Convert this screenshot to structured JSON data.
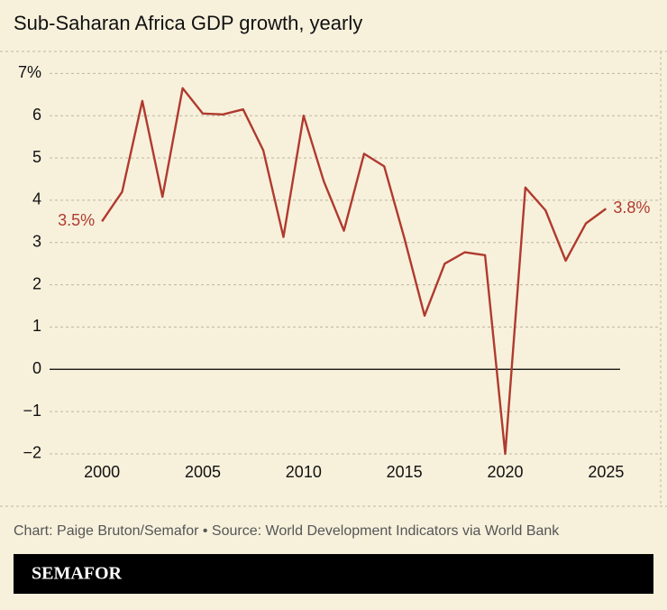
{
  "chart_data": {
    "type": "line",
    "title": "Sub-Saharan Africa GDP growth, yearly",
    "x": [
      2000,
      2001,
      2002,
      2003,
      2004,
      2005,
      2006,
      2007,
      2008,
      2009,
      2010,
      2011,
      2012,
      2013,
      2014,
      2015,
      2016,
      2017,
      2018,
      2019,
      2020,
      2021,
      2022,
      2023,
      2024,
      2025
    ],
    "series": [
      {
        "color": "#b03a2e",
        "values": [
          3.5,
          4.2,
          6.35,
          4.08,
          6.65,
          6.05,
          6.03,
          6.15,
          5.18,
          3.13,
          6.0,
          4.45,
          3.28,
          5.1,
          4.8,
          3.1,
          1.27,
          2.5,
          2.77,
          2.7,
          -2.0,
          4.3,
          3.76,
          2.57,
          3.45,
          3.8
        ],
        "value_labels": [
          "3.5%",
          null,
          null,
          null,
          null,
          null,
          null,
          null,
          null,
          null,
          null,
          null,
          null,
          null,
          null,
          null,
          null,
          null,
          null,
          null,
          null,
          null,
          null,
          null,
          null,
          "3.8%"
        ]
      }
    ],
    "xlim": [
      1997.4,
      2025.7
    ],
    "xticks": [
      2000,
      2005,
      2010,
      2015,
      2020,
      2025
    ],
    "ylim": [
      -2.15,
      7.05
    ],
    "yticks": [
      {
        "value": 7,
        "label": "7%"
      },
      6,
      5,
      4,
      3,
      2,
      1,
      0,
      {
        "value": -1,
        "label": "−1"
      },
      {
        "value": -2,
        "label": "−2"
      }
    ],
    "grid": true,
    "credit": "Chart: Paige Bruton/Semafor • Source: World Development Indicators via World Bank",
    "brand": "SEMAFOR"
  }
}
